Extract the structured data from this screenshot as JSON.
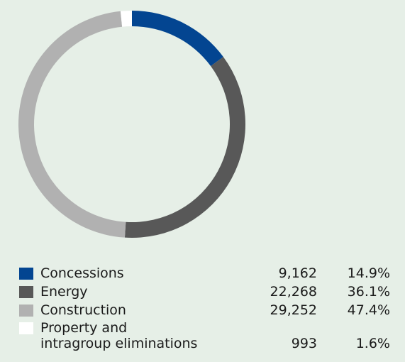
{
  "chart_data": {
    "type": "pie",
    "variant": "donut",
    "start_angle_deg": 0,
    "direction": "clockwise",
    "segments": [
      {
        "label": "Concessions",
        "value": "9,162",
        "percent": "14.9%",
        "share": 14.9,
        "color": "#034591"
      },
      {
        "label": "Energy",
        "value": "22,268",
        "percent": "36.1%",
        "share": 36.1,
        "color": "#585858"
      },
      {
        "label": "Construction",
        "value": "29,252",
        "percent": "47.4%",
        "share": 47.4,
        "color": "#b1b1b1"
      },
      {
        "label": "Property and\nintragroup eliminations",
        "value": "993",
        "percent": "1.6%",
        "share": 1.6,
        "color": "#ffffff"
      }
    ]
  }
}
